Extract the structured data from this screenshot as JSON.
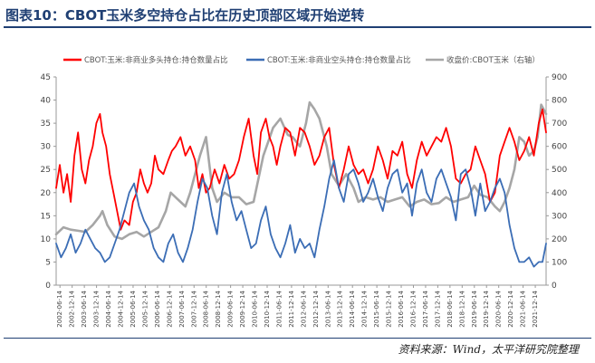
{
  "header": {
    "title": "图表10：CBOT玉米多空持仓占比在历史顶部区域开始逆转"
  },
  "footer": {
    "source": "资料来源：Wind，太平洋研究院整理"
  },
  "chart_data": {
    "type": "line",
    "x_labels": [
      "2002-06-14",
      "2002-12-14",
      "2003-06-14",
      "2003-12-14",
      "2004-06-14",
      "2004-12-14",
      "2005-06-14",
      "2005-12-14",
      "2006-06-14",
      "2006-12-14",
      "2007-06-14",
      "2007-12-14",
      "2008-06-14",
      "2008-12-14",
      "2009-06-14",
      "2009-12-14",
      "2010-06-14",
      "2010-12-14",
      "2011-06-14",
      "2011-12-14",
      "2012-06-14",
      "2012-12-14",
      "2013-06-14",
      "2013-12-14",
      "2014-06-14",
      "2014-12-14",
      "2015-06-14",
      "2015-12-14",
      "2016-06-14",
      "2016-12-14",
      "2017-06-14",
      "2017-12-14",
      "2018-06-14",
      "2018-12-14",
      "2019-06-14",
      "2019-12-14",
      "2020-06-14",
      "2020-12-14",
      "2021-06-14",
      "2021-12-14"
    ],
    "x_range": [
      2002.3,
      2022.4
    ],
    "y_left": {
      "range": [
        0,
        45
      ],
      "ticks": [
        0,
        5,
        10,
        15,
        20,
        25,
        30,
        35,
        40,
        45
      ]
    },
    "y_right": {
      "range": [
        0,
        900
      ],
      "ticks": [
        0,
        100,
        200,
        300,
        400,
        500,
        600,
        700,
        800,
        900
      ]
    },
    "legend_position": "top",
    "series": [
      {
        "name": "CBOT:玉米:非商业多头持仓:持仓数量占比",
        "color": "#ff0000",
        "axis": "left",
        "x": [
          2002.3,
          2002.45,
          2002.6,
          2002.75,
          2002.9,
          2003.05,
          2003.2,
          2003.35,
          2003.5,
          2003.65,
          2003.8,
          2003.95,
          2004.1,
          2004.2,
          2004.35,
          2004.5,
          2004.65,
          2004.8,
          2004.95,
          2005.1,
          2005.3,
          2005.45,
          2005.6,
          2005.75,
          2005.9,
          2006.05,
          2006.2,
          2006.35,
          2006.5,
          2006.7,
          2006.9,
          2007.05,
          2007.2,
          2007.4,
          2007.6,
          2007.8,
          2008.0,
          2008.15,
          2008.3,
          2008.45,
          2008.6,
          2008.8,
          2009.0,
          2009.2,
          2009.4,
          2009.6,
          2009.8,
          2010.0,
          2010.2,
          2010.4,
          2010.55,
          2010.7,
          2010.9,
          2011.05,
          2011.2,
          2011.35,
          2011.5,
          2011.7,
          2011.9,
          2012.1,
          2012.3,
          2012.5,
          2012.7,
          2012.9,
          2013.1,
          2013.3,
          2013.5,
          2013.7,
          2013.9,
          2014.1,
          2014.3,
          2014.5,
          2014.7,
          2014.9,
          2015.1,
          2015.3,
          2015.5,
          2015.7,
          2015.9,
          2016.1,
          2016.3,
          2016.5,
          2016.7,
          2016.9,
          2017.1,
          2017.3,
          2017.5,
          2017.7,
          2017.9,
          2018.1,
          2018.3,
          2018.5,
          2018.7,
          2018.9,
          2019.1,
          2019.3,
          2019.5,
          2019.7,
          2019.9,
          2020.1,
          2020.3,
          2020.5,
          2020.7,
          2020.9,
          2021.1,
          2021.3,
          2021.5,
          2021.7,
          2021.9,
          2022.1,
          2022.25,
          2022.4
        ],
        "y": [
          21,
          26,
          20,
          24,
          18,
          28,
          33,
          25,
          22,
          27,
          30,
          35,
          37,
          33,
          30,
          24,
          20,
          16,
          12,
          14,
          13,
          18,
          20,
          25,
          22,
          20,
          22,
          28,
          25,
          24,
          27,
          29,
          30,
          32,
          28,
          30,
          27,
          21,
          24,
          20,
          21,
          25,
          22,
          26,
          23,
          24,
          27,
          32,
          36,
          28,
          24,
          33,
          36,
          32,
          30,
          26,
          30,
          34,
          33,
          28,
          34,
          33,
          30,
          26,
          28,
          32,
          34,
          26,
          21,
          25,
          30,
          26,
          24,
          25,
          22,
          25,
          30,
          27,
          23,
          29,
          28,
          31,
          24,
          21,
          27,
          31,
          28,
          30,
          32,
          31,
          34,
          30,
          23,
          22,
          24,
          25,
          30,
          27,
          24,
          18,
          20,
          28,
          31,
          34,
          31,
          27,
          29,
          32,
          28,
          35,
          38,
          33
        ]
      },
      {
        "name": "CBOT:玉米:非商业空头持仓:持仓数量占比",
        "color": "#3b6db5",
        "axis": "left",
        "x": [
          2002.3,
          2002.5,
          2002.7,
          2002.9,
          2003.1,
          2003.3,
          2003.5,
          2003.7,
          2003.9,
          2004.1,
          2004.3,
          2004.5,
          2004.7,
          2004.9,
          2005.1,
          2005.3,
          2005.5,
          2005.7,
          2005.9,
          2006.1,
          2006.3,
          2006.5,
          2006.7,
          2006.9,
          2007.1,
          2007.3,
          2007.5,
          2007.7,
          2007.9,
          2008.1,
          2008.3,
          2008.5,
          2008.7,
          2008.9,
          2009.1,
          2009.3,
          2009.5,
          2009.7,
          2009.9,
          2010.1,
          2010.3,
          2010.5,
          2010.7,
          2010.9,
          2011.1,
          2011.3,
          2011.5,
          2011.7,
          2011.9,
          2012.1,
          2012.3,
          2012.5,
          2012.7,
          2012.9,
          2013.1,
          2013.3,
          2013.5,
          2013.7,
          2013.9,
          2014.1,
          2014.3,
          2014.5,
          2014.7,
          2014.9,
          2015.1,
          2015.3,
          2015.5,
          2015.7,
          2015.9,
          2016.1,
          2016.3,
          2016.5,
          2016.7,
          2016.9,
          2017.1,
          2017.3,
          2017.5,
          2017.7,
          2017.9,
          2018.1,
          2018.3,
          2018.5,
          2018.7,
          2018.9,
          2019.1,
          2019.3,
          2019.5,
          2019.7,
          2019.9,
          2020.1,
          2020.3,
          2020.5,
          2020.7,
          2020.9,
          2021.1,
          2021.3,
          2021.5,
          2021.7,
          2021.9,
          2022.1,
          2022.25,
          2022.4
        ],
        "y": [
          9,
          6,
          8,
          11,
          7,
          9,
          12,
          10,
          8,
          7,
          5,
          6,
          9,
          12,
          16,
          20,
          22,
          17,
          14,
          12,
          8,
          6,
          5,
          9,
          11,
          7,
          5,
          8,
          12,
          18,
          23,
          21,
          15,
          11,
          20,
          24,
          18,
          14,
          16,
          12,
          8,
          9,
          14,
          17,
          11,
          8,
          6,
          9,
          13,
          7,
          10,
          8,
          9,
          6,
          12,
          17,
          23,
          27,
          21,
          18,
          24,
          25,
          22,
          18,
          20,
          23,
          19,
          16,
          21,
          24,
          25,
          20,
          22,
          15,
          22,
          25,
          20,
          18,
          23,
          25,
          22,
          19,
          14,
          24,
          25,
          21,
          15,
          22,
          16,
          18,
          21,
          23,
          20,
          13,
          8,
          5,
          5,
          6,
          4,
          5,
          5,
          9
        ]
      },
      {
        "name": "收盘价:CBOT玉米（右轴）",
        "color": "#a6a6a6",
        "axis": "right",
        "x": [
          2002.3,
          2002.6,
          2002.9,
          2003.2,
          2003.5,
          2003.8,
          2004.1,
          2004.2,
          2004.4,
          2004.7,
          2005.0,
          2005.3,
          2005.6,
          2005.9,
          2006.2,
          2006.5,
          2006.8,
          2007.0,
          2007.2,
          2007.4,
          2007.6,
          2007.8,
          2008.0,
          2008.2,
          2008.45,
          2008.7,
          2008.9,
          2009.2,
          2009.5,
          2009.8,
          2010.1,
          2010.4,
          2010.6,
          2010.8,
          2011.0,
          2011.2,
          2011.5,
          2011.8,
          2012.0,
          2012.3,
          2012.55,
          2012.7,
          2012.9,
          2013.1,
          2013.4,
          2013.6,
          2013.9,
          2014.2,
          2014.5,
          2014.7,
          2015.0,
          2015.3,
          2015.6,
          2015.9,
          2016.2,
          2016.5,
          2016.8,
          2017.1,
          2017.4,
          2017.7,
          2018.0,
          2018.3,
          2018.6,
          2018.9,
          2019.2,
          2019.45,
          2019.7,
          2020.0,
          2020.3,
          2020.5,
          2020.7,
          2020.9,
          2021.1,
          2021.3,
          2021.5,
          2021.7,
          2021.9,
          2022.05,
          2022.2,
          2022.4
        ],
        "y": [
          220,
          250,
          240,
          235,
          230,
          260,
          300,
          320,
          260,
          210,
          200,
          220,
          230,
          210,
          230,
          250,
          320,
          400,
          380,
          360,
          340,
          400,
          480,
          560,
          640,
          420,
          360,
          400,
          380,
          380,
          350,
          360,
          460,
          560,
          620,
          680,
          720,
          650,
          640,
          600,
          700,
          790,
          760,
          720,
          600,
          480,
          430,
          480,
          420,
          360,
          380,
          370,
          380,
          360,
          370,
          380,
          340,
          360,
          370,
          350,
          355,
          380,
          360,
          370,
          380,
          430,
          390,
          380,
          340,
          320,
          360,
          420,
          500,
          640,
          620,
          560,
          580,
          640,
          780,
          740
        ]
      }
    ]
  }
}
